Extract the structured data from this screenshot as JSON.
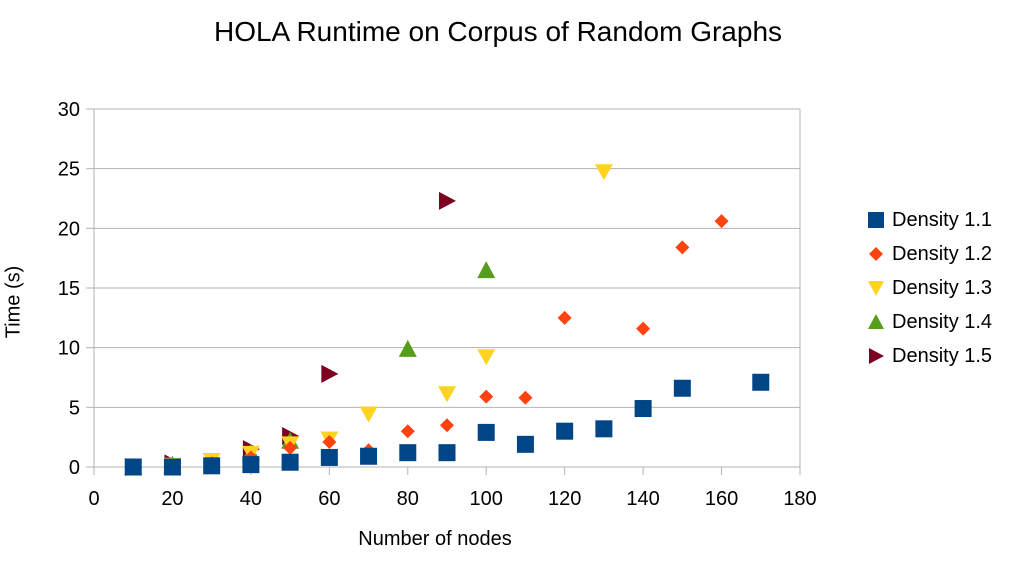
{
  "chart_data": {
    "type": "scatter",
    "title": "HOLA Runtime on Corpus of Random Graphs",
    "xlabel": "Number of nodes",
    "ylabel": "Time (s)",
    "xlim": [
      0,
      180
    ],
    "ylim": [
      0,
      30
    ],
    "xticks": [
      0,
      20,
      40,
      60,
      80,
      100,
      120,
      140,
      160,
      180
    ],
    "yticks": [
      0,
      5,
      10,
      15,
      20,
      25,
      30
    ],
    "grid": "horizontal",
    "legend_position": "right",
    "series": [
      {
        "name": "Density 1.1",
        "marker": "square",
        "color": "#004586",
        "points": [
          [
            10,
            0.0
          ],
          [
            20,
            0.0
          ],
          [
            30,
            0.1
          ],
          [
            40,
            0.2
          ],
          [
            50,
            0.4
          ],
          [
            60,
            0.8
          ],
          [
            70,
            0.9
          ],
          [
            80,
            1.2
          ],
          [
            90,
            1.2
          ],
          [
            100,
            2.9
          ],
          [
            110,
            1.9
          ],
          [
            120,
            3.0
          ],
          [
            130,
            3.2
          ],
          [
            140,
            4.9
          ],
          [
            150,
            6.6
          ],
          [
            170,
            7.1
          ]
        ]
      },
      {
        "name": "Density 1.2",
        "marker": "diamond",
        "color": "#ff420e",
        "points": [
          [
            10,
            0.0
          ],
          [
            20,
            0.1
          ],
          [
            30,
            0.3
          ],
          [
            40,
            0.8
          ],
          [
            50,
            1.6
          ],
          [
            60,
            2.1
          ],
          [
            70,
            1.4
          ],
          [
            80,
            3.0
          ],
          [
            90,
            3.5
          ],
          [
            100,
            5.9
          ],
          [
            110,
            5.8
          ],
          [
            120,
            12.5
          ],
          [
            140,
            11.6
          ],
          [
            150,
            18.4
          ],
          [
            160,
            20.6
          ]
        ]
      },
      {
        "name": "Density 1.3",
        "marker": "triangle-down",
        "color": "#ffd320",
        "points": [
          [
            10,
            0.0
          ],
          [
            20,
            0.1
          ],
          [
            30,
            0.5
          ],
          [
            40,
            1.1
          ],
          [
            50,
            1.9
          ],
          [
            60,
            2.3
          ],
          [
            70,
            4.4
          ],
          [
            90,
            6.1
          ],
          [
            100,
            9.2
          ],
          [
            130,
            24.7
          ]
        ]
      },
      {
        "name": "Density 1.4",
        "marker": "triangle-up",
        "color": "#579d1c",
        "points": [
          [
            10,
            0.0
          ],
          [
            20,
            0.2
          ],
          [
            40,
            1.2
          ],
          [
            50,
            2.2
          ],
          [
            80,
            9.9
          ],
          [
            100,
            16.5
          ]
        ]
      },
      {
        "name": "Density 1.5",
        "marker": "triangle-right",
        "color": "#7e0021",
        "points": [
          [
            10,
            0.0
          ],
          [
            20,
            0.3
          ],
          [
            40,
            1.5
          ],
          [
            50,
            2.6
          ],
          [
            60,
            7.8
          ],
          [
            90,
            22.3
          ]
        ]
      }
    ]
  }
}
